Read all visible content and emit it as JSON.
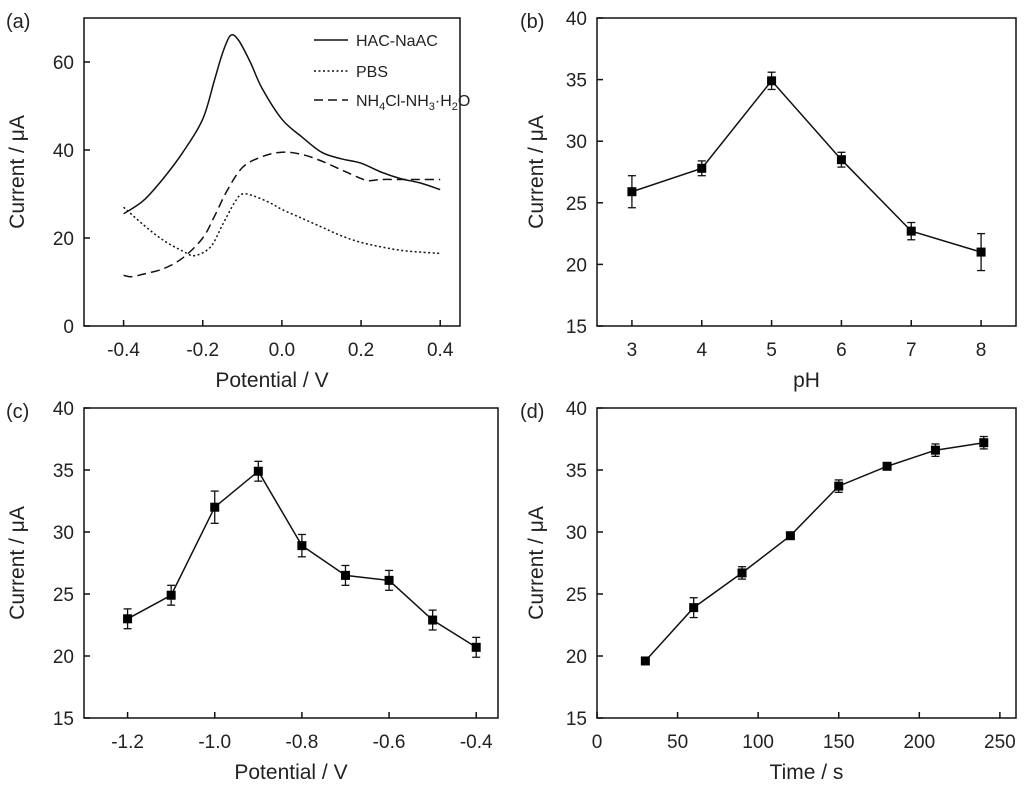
{
  "chart_data": [
    {
      "panel": "(a)",
      "type": "line",
      "xlabel": "Potential / V",
      "ylabel": "Current / μA",
      "xlim": [
        -0.5,
        0.45
      ],
      "ylim": [
        0,
        70
      ],
      "xticks": [
        -0.4,
        -0.2,
        0.0,
        0.2,
        0.4
      ],
      "xtick_labels": [
        "-0.4",
        "-0.2",
        "0.0",
        "0.2",
        "0.4"
      ],
      "yticks": [
        0,
        20,
        40,
        60
      ],
      "ytick_labels": [
        "0",
        "20",
        "40",
        "60"
      ],
      "legend_position": "top-right",
      "series": [
        {
          "name": "HAC-NaAC",
          "style": "solid",
          "x": [
            -0.4,
            -0.35,
            -0.3,
            -0.25,
            -0.2,
            -0.17,
            -0.15,
            -0.13,
            -0.11,
            -0.08,
            -0.05,
            0.0,
            0.05,
            0.1,
            0.15,
            0.2,
            0.25,
            0.3,
            0.35,
            0.4
          ],
          "y": [
            25.5,
            28.5,
            33.5,
            39.5,
            47,
            56,
            62,
            66,
            65,
            60,
            54,
            47,
            43,
            39.5,
            38,
            37,
            35,
            33.5,
            32.5,
            31
          ]
        },
        {
          "name": "PBS",
          "style": "dotted",
          "x": [
            -0.4,
            -0.35,
            -0.3,
            -0.25,
            -0.22,
            -0.18,
            -0.15,
            -0.12,
            -0.1,
            -0.07,
            -0.03,
            0.0,
            0.05,
            0.1,
            0.15,
            0.2,
            0.25,
            0.3,
            0.35,
            0.4
          ],
          "y": [
            27,
            23,
            19.5,
            17,
            16,
            18,
            23,
            28,
            30,
            29.5,
            28,
            26.5,
            24.5,
            22.5,
            20.5,
            19,
            18,
            17.2,
            16.8,
            16.5
          ]
        },
        {
          "name": "NH4Cl-NH3·H2O",
          "style": "dashed",
          "x": [
            -0.4,
            -0.38,
            -0.35,
            -0.3,
            -0.25,
            -0.2,
            -0.17,
            -0.14,
            -0.1,
            -0.05,
            0.0,
            0.05,
            0.1,
            0.15,
            0.2,
            0.22,
            0.25,
            0.3,
            0.35,
            0.4
          ],
          "y": [
            11.5,
            11.2,
            11.8,
            13,
            15.5,
            20,
            25,
            30.5,
            36,
            38.5,
            39.5,
            39,
            37.5,
            35.5,
            33.5,
            33,
            33.3,
            33.3,
            33.3,
            33.3
          ]
        }
      ],
      "legend_labels": {
        "hac": "HAC-NaAC",
        "pbs": "PBS",
        "nh4cl_parts": [
          "NH",
          "4",
          "Cl-NH",
          "3",
          "·H",
          "2",
          "O"
        ]
      }
    },
    {
      "panel": "(b)",
      "type": "line",
      "xlabel": "pH",
      "ylabel": "Current / μA",
      "xlim": [
        2.5,
        8.5
      ],
      "ylim": [
        15,
        40
      ],
      "xticks": [
        3,
        4,
        5,
        6,
        7,
        8
      ],
      "xtick_labels": [
        "3",
        "4",
        "5",
        "6",
        "7",
        "8"
      ],
      "yticks": [
        15,
        20,
        25,
        30,
        35,
        40
      ],
      "ytick_labels": [
        "15",
        "20",
        "25",
        "30",
        "35",
        "40"
      ],
      "series": [
        {
          "name": "Current",
          "x": [
            3,
            4,
            5,
            6,
            7,
            8
          ],
          "y": [
            25.9,
            27.8,
            34.9,
            28.5,
            22.7,
            21.0
          ],
          "err": [
            1.3,
            0.6,
            0.7,
            0.6,
            0.7,
            1.5
          ]
        }
      ]
    },
    {
      "panel": "(c)",
      "type": "line",
      "xlabel": "Potential / V",
      "ylabel": "Current / μA",
      "xlim": [
        -1.3,
        -0.35
      ],
      "ylim": [
        15,
        40
      ],
      "xticks": [
        -1.2,
        -1.0,
        -0.8,
        -0.6,
        -0.4
      ],
      "xtick_labels": [
        "-1.2",
        "-1.0",
        "-0.8",
        "-0.6",
        "-0.4"
      ],
      "yticks": [
        15,
        20,
        25,
        30,
        35,
        40
      ],
      "ytick_labels": [
        "15",
        "20",
        "25",
        "30",
        "35",
        "40"
      ],
      "series": [
        {
          "name": "Current",
          "x": [
            -1.2,
            -1.1,
            -1.0,
            -0.9,
            -0.8,
            -0.7,
            -0.6,
            -0.5,
            -0.4
          ],
          "y": [
            23.0,
            24.9,
            32.0,
            34.9,
            28.9,
            26.5,
            26.1,
            22.9,
            20.7
          ],
          "err": [
            0.8,
            0.8,
            1.3,
            0.8,
            0.9,
            0.8,
            0.8,
            0.8,
            0.8
          ]
        }
      ]
    },
    {
      "panel": "(d)",
      "type": "line",
      "xlabel": "Time / s",
      "ylabel": "Current / μA",
      "xlim": [
        0,
        260
      ],
      "ylim": [
        15,
        40
      ],
      "xticks": [
        0,
        50,
        100,
        150,
        200,
        250
      ],
      "xtick_labels": [
        "0",
        "50",
        "100",
        "150",
        "200",
        "250"
      ],
      "yticks": [
        15,
        20,
        25,
        30,
        35,
        40
      ],
      "ytick_labels": [
        "15",
        "20",
        "25",
        "30",
        "35",
        "40"
      ],
      "series": [
        {
          "name": "Current",
          "x": [
            30,
            60,
            90,
            120,
            150,
            180,
            210,
            240
          ],
          "y": [
            19.6,
            23.9,
            26.7,
            29.7,
            33.7,
            35.3,
            36.6,
            37.2
          ],
          "err": [
            0.0,
            0.8,
            0.5,
            0.0,
            0.5,
            0.0,
            0.5,
            0.5
          ]
        }
      ]
    }
  ]
}
